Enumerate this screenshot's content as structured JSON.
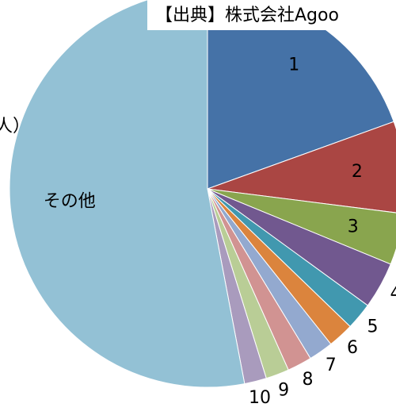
{
  "chart_data": {
    "type": "pie",
    "annotations": [
      "【出典】株式会社Agoo",
      "人）"
    ],
    "categories": [
      "1",
      "2",
      "3",
      "4",
      "5",
      "6",
      "7",
      "8",
      "9",
      "10",
      "その他"
    ],
    "values": [
      19.5,
      7.5,
      4.2,
      3.8,
      2.2,
      2.1,
      2.0,
      2.0,
      1.9,
      1.8,
      53
    ],
    "colors": [
      "#4572a7",
      "#aa4643",
      "#89a54e",
      "#71588f",
      "#4198af",
      "#db843d",
      "#93a9cf",
      "#d19392",
      "#b9cd96",
      "#a99bbd",
      "#93c1d5"
    ]
  }
}
